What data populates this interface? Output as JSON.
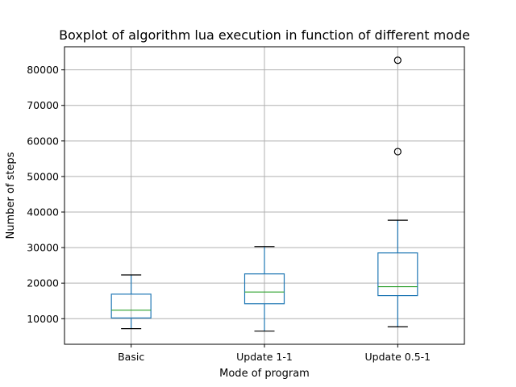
{
  "chart_data": {
    "type": "box",
    "title": "Boxplot of algorithm lua execution in function of different mode",
    "xlabel": "Mode of program",
    "ylabel": "Number of steps",
    "ylim": [
      2800,
      86500
    ],
    "yticks": [
      10000,
      20000,
      30000,
      40000,
      50000,
      60000,
      70000,
      80000
    ],
    "ytick_labels": [
      "10000",
      "20000",
      "30000",
      "40000",
      "50000",
      "60000",
      "70000",
      "80000"
    ],
    "grid": true,
    "categories": [
      "Basic",
      "Update 1-1",
      "Update 0.5-1"
    ],
    "boxes": [
      {
        "name": "Basic",
        "whisker_low": 7200,
        "q1": 10200,
        "median": 12400,
        "q3": 16900,
        "whisker_high": 22300,
        "outliers": []
      },
      {
        "name": "Update 1-1",
        "whisker_low": 6500,
        "q1": 14200,
        "median": 17500,
        "q3": 22600,
        "whisker_high": 30300,
        "outliers": []
      },
      {
        "name": "Update 0.5-1",
        "whisker_low": 7700,
        "q1": 16500,
        "median": 19000,
        "q3": 28500,
        "whisker_high": 37700,
        "outliers": [
          57000,
          82700
        ]
      }
    ],
    "colors": {
      "box": "#1f77b4",
      "median": "#2ca02c",
      "whisker_cap": "#000000",
      "outlier": "#000000"
    }
  }
}
